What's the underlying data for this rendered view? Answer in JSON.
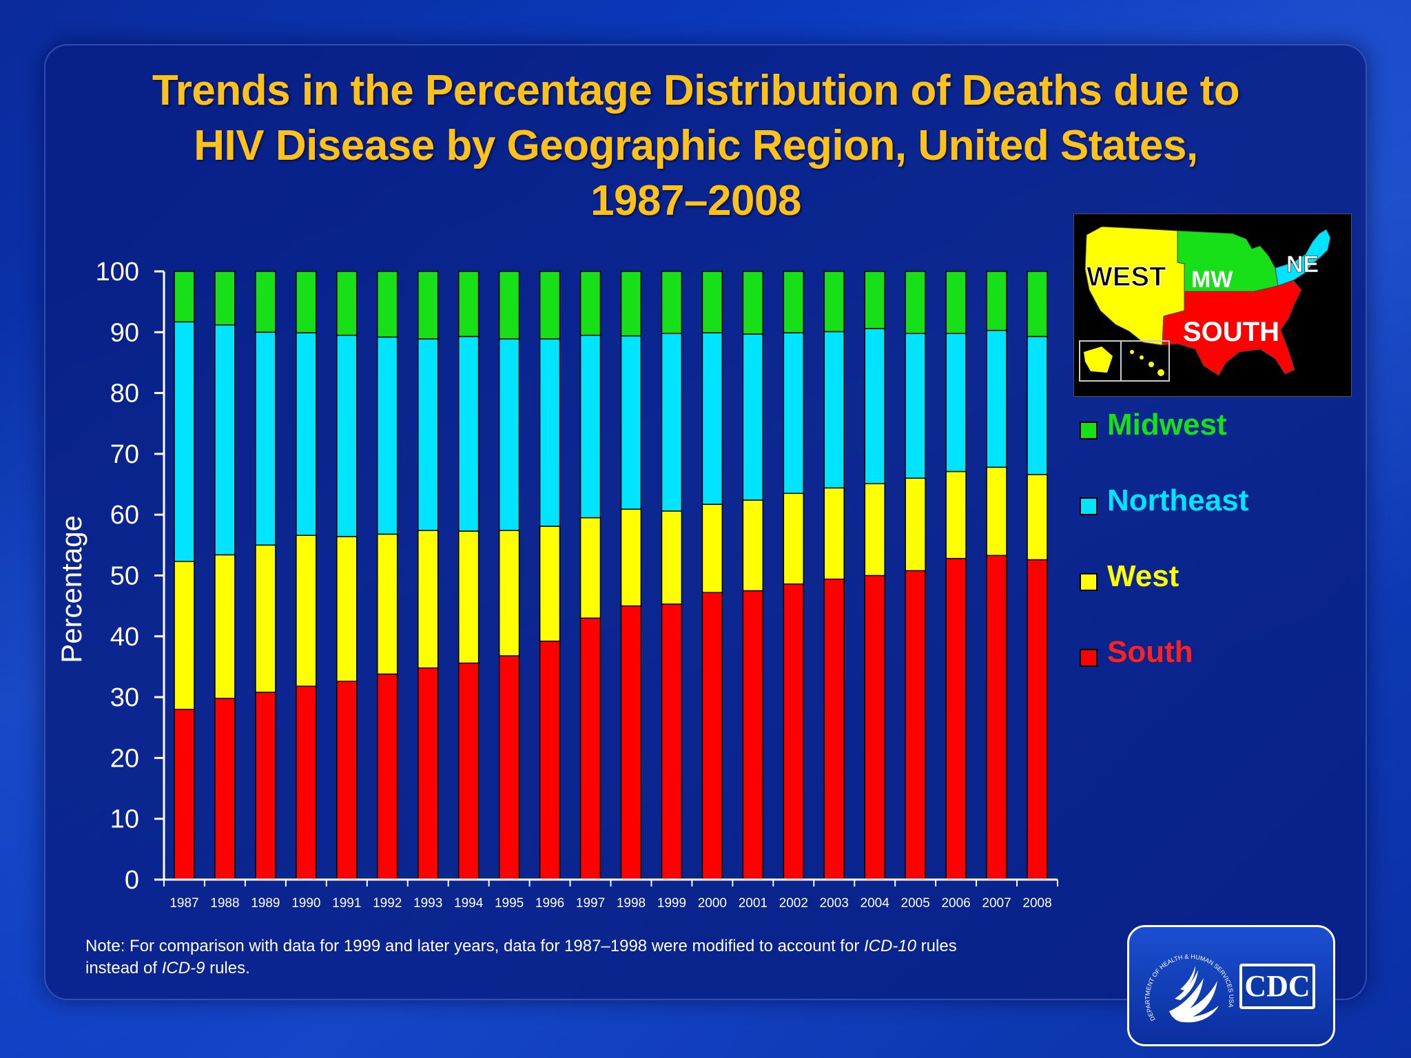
{
  "title": {
    "line1": "Trends in the Percentage Distribution of Deaths due to",
    "line2": "HIV Disease by Geographic Region, United States,",
    "line3": "1987–2008"
  },
  "colors": {
    "South": "#ff0000",
    "West": "#ffff00",
    "Northeast": "#00e4ff",
    "Midwest": "#18e018",
    "title": "#ffc21a"
  },
  "chart_data": {
    "type": "bar",
    "stacked": true,
    "title": "Trends in the Percentage Distribution of Deaths due to HIV Disease by Geographic Region, United States, 1987–2008",
    "xlabel": "",
    "ylabel": "Percentage",
    "ylim": [
      0,
      100
    ],
    "yticks": [
      0,
      10,
      20,
      30,
      40,
      50,
      60,
      70,
      80,
      90,
      100
    ],
    "categories": [
      "1987",
      "1988",
      "1989",
      "1990",
      "1991",
      "1992",
      "1993",
      "1994",
      "1995",
      "1996",
      "1997",
      "1998",
      "1999",
      "2000",
      "2001",
      "2002",
      "2003",
      "2004",
      "2005",
      "2006",
      "2007",
      "2008"
    ],
    "series": [
      {
        "name": "South",
        "values": [
          28,
          29.8,
          30.8,
          31.8,
          32.6,
          33.8,
          34.8,
          35.6,
          36.8,
          39.2,
          43,
          45,
          45.3,
          47.2,
          47.5,
          48.6,
          49.4,
          50,
          50.8,
          52.8,
          53.3,
          52.6
        ]
      },
      {
        "name": "West",
        "values": [
          24.3,
          23.6,
          24.2,
          24.8,
          23.8,
          23,
          22.6,
          21.7,
          20.6,
          18.9,
          16.5,
          15.9,
          15.3,
          14.5,
          14.9,
          14.9,
          15,
          15.1,
          15.2,
          14.3,
          14.5,
          14
        ]
      },
      {
        "name": "Northeast",
        "values": [
          39.4,
          37.8,
          35,
          33.3,
          33.1,
          32.4,
          31.5,
          32,
          31.5,
          30.8,
          30,
          28.5,
          29.2,
          28.2,
          27.3,
          26.4,
          25.7,
          25.5,
          23.8,
          22.7,
          22.5,
          22.7
        ]
      },
      {
        "name": "Midwest",
        "values": [
          8.3,
          8.8,
          10,
          10.1,
          10.5,
          10.8,
          11.1,
          10.7,
          11.1,
          11.1,
          10.5,
          10.6,
          10.2,
          10.1,
          10.3,
          10.1,
          9.9,
          9.4,
          10.2,
          10.2,
          9.7,
          10.7
        ]
      }
    ],
    "legend": [
      "Midwest",
      "Northeast",
      "West",
      "South"
    ],
    "legend_position": "right"
  },
  "map": {
    "labels": [
      "WEST",
      "MW",
      "NE",
      "SOUTH"
    ]
  },
  "note": {
    "prefix": "Note: For comparison with data for 1999 and later years, data for 1987–1998 were modified to account for ",
    "icd10": "ICD-10",
    "middle": " rules instead of ",
    "icd9": "ICD-9",
    "suffix": " rules."
  },
  "logo": {
    "cdc": "CDC",
    "seal_text": "DEPARTMENT OF HEALTH & HUMAN SERVICES USA"
  }
}
